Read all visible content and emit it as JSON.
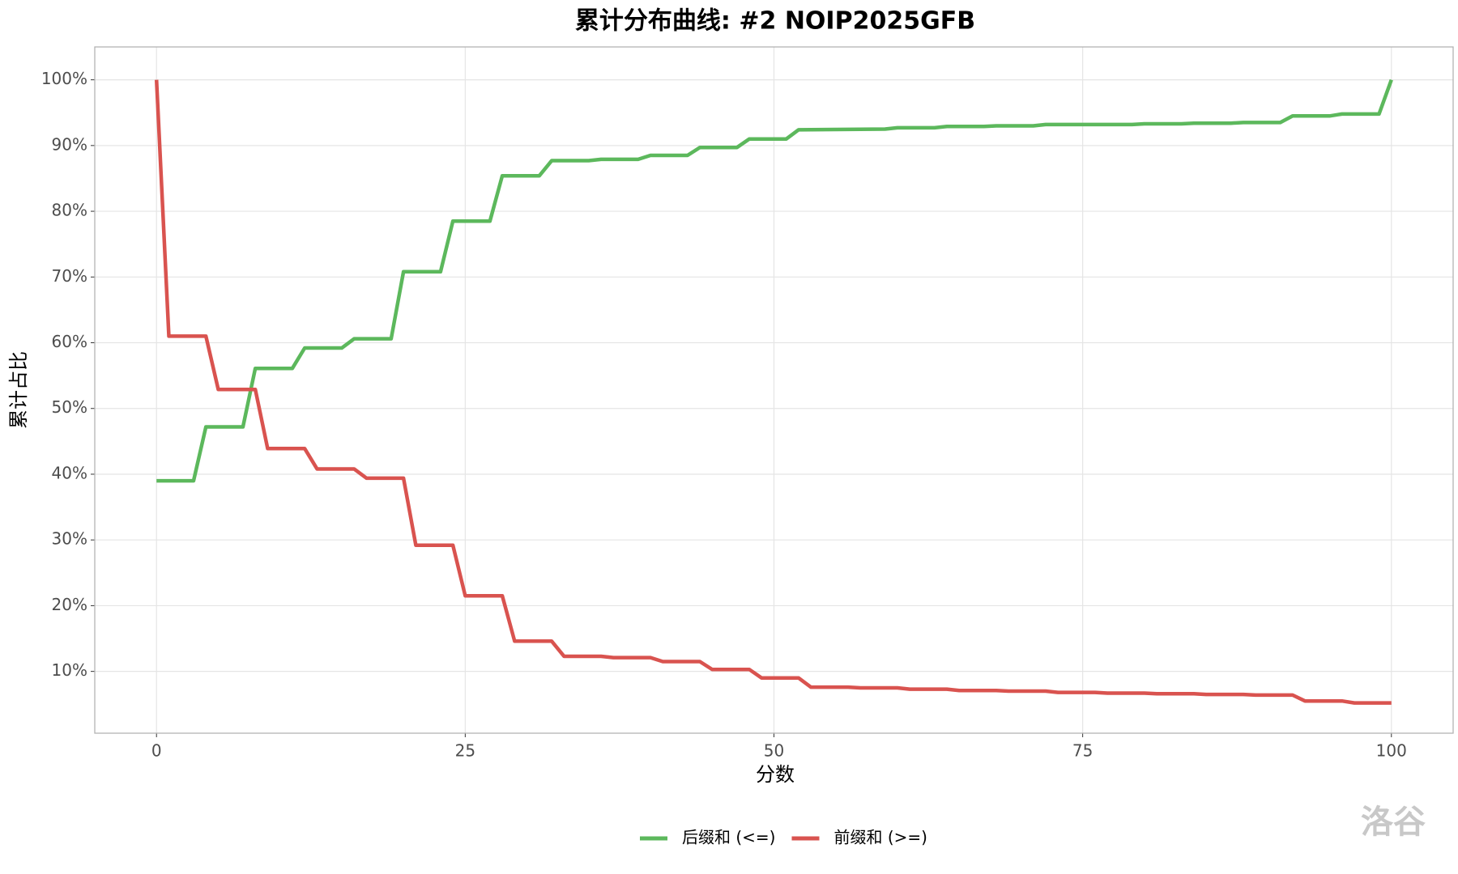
{
  "chart_data": {
    "type": "line",
    "title": "累计分布曲线: #2 NOIP2025GFB",
    "x_label": "分数",
    "y_label": "累计占比",
    "watermark": "洛谷",
    "xlim": [
      -5,
      105
    ],
    "xticks": [
      0,
      25,
      50,
      75,
      100
    ],
    "ylim": [
      0.6,
      105
    ],
    "yticks": [
      {
        "value": 10,
        "label": "10%"
      },
      {
        "value": 20,
        "label": "20%"
      },
      {
        "value": 30,
        "label": "30%"
      },
      {
        "value": 40,
        "label": "40%"
      },
      {
        "value": 50,
        "label": "50%"
      },
      {
        "value": 60,
        "label": "60%"
      },
      {
        "value": 70,
        "label": "70%"
      },
      {
        "value": 80,
        "label": "80%"
      },
      {
        "value": 90,
        "label": "90%"
      },
      {
        "value": 100,
        "label": "100%"
      }
    ],
    "grid": true,
    "legend": "bottom",
    "series": [
      {
        "name": "后缀和 (<=)",
        "color": "#5cb85c",
        "x": [
          0,
          3,
          4,
          7,
          8,
          11,
          12,
          15,
          16,
          19,
          20,
          23,
          24,
          27,
          28,
          31,
          32,
          35,
          36,
          39,
          40,
          43,
          44,
          47,
          48,
          51,
          52,
          59,
          60,
          63,
          64,
          67,
          68,
          71,
          72,
          79,
          80,
          83,
          84,
          87,
          88,
          91,
          92,
          95,
          96,
          99,
          100
        ],
        "values": [
          39,
          39,
          47.2,
          47.2,
          56.1,
          56.1,
          59.2,
          59.2,
          60.6,
          60.6,
          70.8,
          70.8,
          78.5,
          78.5,
          85.4,
          85.4,
          87.7,
          87.7,
          87.9,
          87.9,
          88.5,
          88.5,
          89.7,
          89.7,
          91,
          91,
          92.4,
          92.5,
          92.7,
          92.7,
          92.9,
          92.9,
          93,
          93,
          93.2,
          93.2,
          93.3,
          93.3,
          93.4,
          93.4,
          93.5,
          93.5,
          94.5,
          94.5,
          94.8,
          94.8,
          100
        ]
      },
      {
        "name": "前缀和 (>=)",
        "color": "#d9534f",
        "x": [
          0,
          1,
          4,
          5,
          8,
          9,
          12,
          13,
          16,
          17,
          20,
          21,
          24,
          25,
          28,
          29,
          32,
          33,
          36,
          37,
          40,
          41,
          44,
          45,
          48,
          49,
          52,
          53,
          56,
          57,
          60,
          61,
          64,
          65,
          68,
          69,
          72,
          73,
          76,
          77,
          80,
          81,
          84,
          85,
          88,
          89,
          92,
          93,
          96,
          97,
          100
        ],
        "values": [
          100,
          61,
          61,
          52.9,
          52.9,
          43.9,
          43.9,
          40.8,
          40.8,
          39.4,
          39.4,
          29.2,
          29.2,
          21.5,
          21.5,
          14.6,
          14.6,
          12.3,
          12.3,
          12.1,
          12.1,
          11.5,
          11.5,
          10.3,
          10.3,
          9,
          9,
          7.6,
          7.6,
          7.5,
          7.5,
          7.3,
          7.3,
          7.1,
          7.1,
          7,
          7,
          6.8,
          6.8,
          6.7,
          6.7,
          6.6,
          6.6,
          6.5,
          6.5,
          6.4,
          6.4,
          5.5,
          5.5,
          5.2,
          5.2
        ]
      }
    ]
  }
}
